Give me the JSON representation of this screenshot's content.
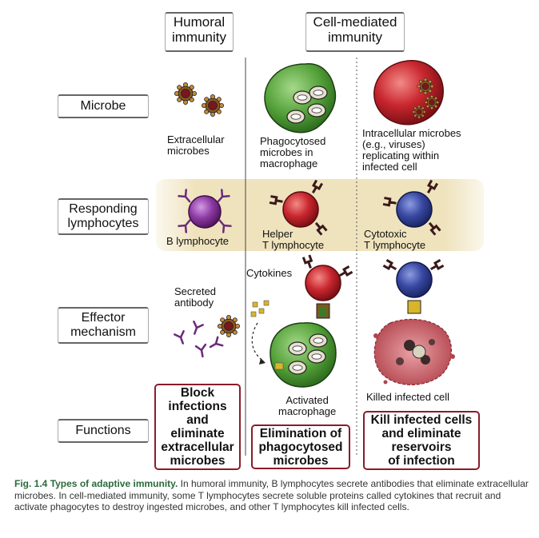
{
  "headers": {
    "humoral": "Humoral\nimmunity",
    "cell_mediated": "Cell-mediated\nimmunity"
  },
  "rows": {
    "microbe": "Microbe",
    "responding": "Responding\nlymphocytes",
    "effector": "Effector\nmechanism",
    "functions": "Functions"
  },
  "labels": {
    "extracellular": "Extracellular\nmicrobes",
    "phagocytosed": "Phagocytosed\nmicrobes in\nmacrophage",
    "intracellular": "Intracellular microbes\n(e.g., viruses)\nreplicating within\ninfected cell",
    "b_lymphocyte": "B lymphocyte",
    "helper_t": "Helper\nT lymphocyte",
    "cytotoxic_t": "Cytotoxic\nT lymphocyte",
    "secreted_antibody": "Secreted\nantibody",
    "cytokines": "Cytokines",
    "activated_macrophage": "Activated\nmacrophage",
    "killed_cell": "Killed infected cell"
  },
  "functions": {
    "humoral": "Block\ninfections\nand\neliminate\nextracellular\nmicrobes",
    "phagocytes": "Elimination of\nphagocytosed\nmicrobes",
    "cytotoxic": "Kill infected cells\nand eliminate\nreservoirs\nof infection"
  },
  "caption": {
    "fig": "Fig. 1.4",
    "title": "Types of adaptive immunity.",
    "text": "In humoral immunity, B lymphocytes secrete antibodies that eliminate extracellular microbes. In cell-mediated immunity, some T lymphocytes secrete soluble proteins called cytokines that recruit and activate phagocytes to destroy ingested microbes, and other T lymphocytes kill infected cells."
  },
  "colors": {
    "function_border": "#8a1c2b",
    "band": "#efe4c2",
    "macrophage": "#4e9e32",
    "helper_t": "#c0282e",
    "cytotoxic_t": "#3949a0",
    "b_cell": "#8a3aa0",
    "microbe": "#7a1620",
    "caption_title": "#2a6a3b"
  }
}
